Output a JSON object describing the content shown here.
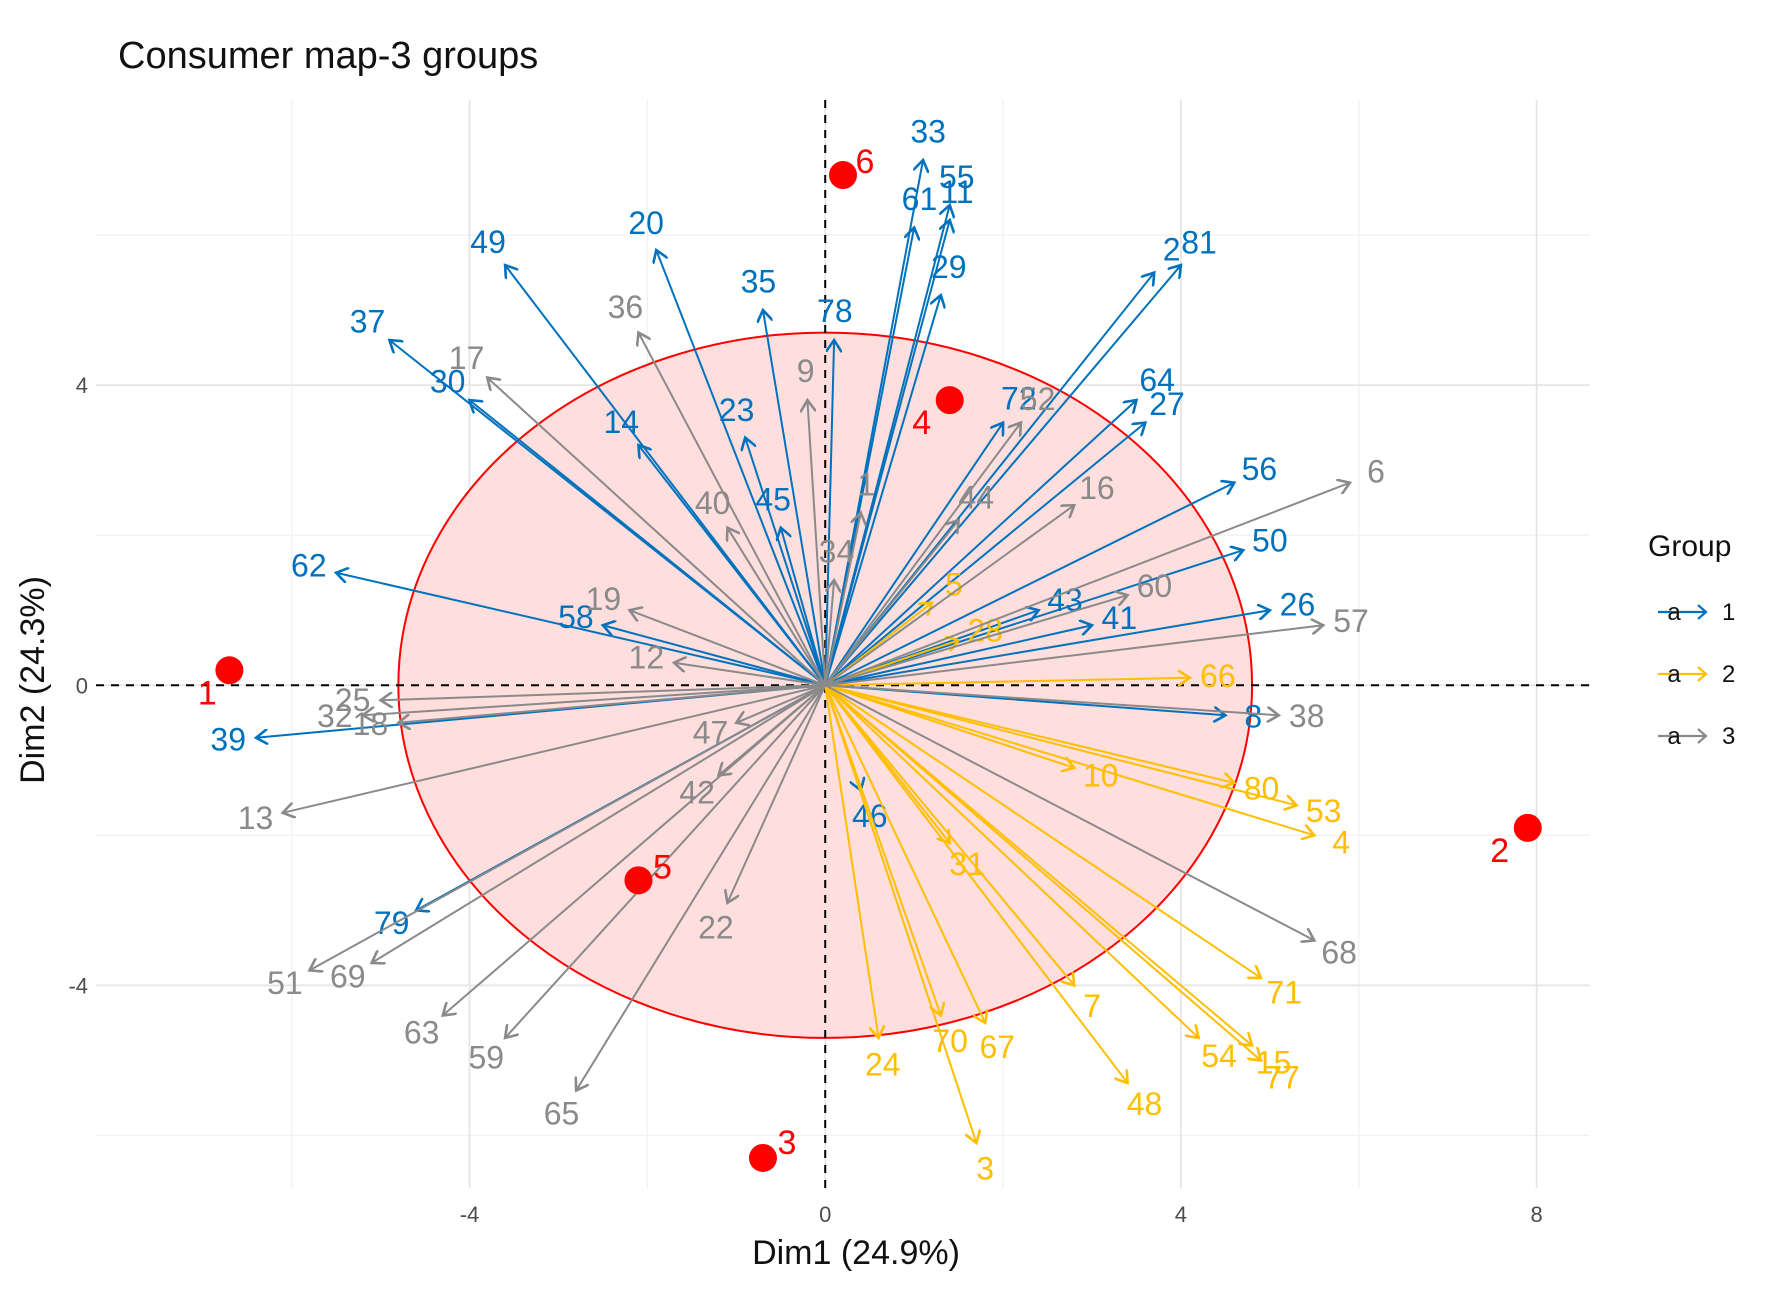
{
  "chart_data": {
    "type": "scatter",
    "title": "Consumer map-3 groups",
    "xlabel": "Dim1 (24.9%)",
    "ylabel": "Dim2 (24.3%)",
    "xlim": [
      -8.2,
      8.6
    ],
    "ylim": [
      -6.7,
      7.8
    ],
    "xticks": [
      -4,
      0,
      4,
      8
    ],
    "yticks": [
      -4,
      0,
      4
    ],
    "x_tick_labels": [
      "-4",
      "0",
      "4",
      "8"
    ],
    "y_tick_labels": [
      "-4",
      "0",
      "4"
    ],
    "legend": {
      "title": "Group",
      "placement": "right",
      "entries": [
        {
          "label": "1",
          "key_glyph": "a",
          "color": "#0072BD"
        },
        {
          "label": "2",
          "key_glyph": "a",
          "color": "#FFBF00"
        },
        {
          "label": "3",
          "key_glyph": "a",
          "color": "#8A8A8A"
        }
      ]
    },
    "group_colors": {
      "1": "#0072BD",
      "2": "#FFBF00",
      "3": "#8A8A8A"
    },
    "ellipse": {
      "center": [
        0,
        0
      ],
      "rx": 4.8,
      "ry": 4.7,
      "fill": "#ffdede",
      "stroke": "#ff0000"
    },
    "points_color": "#ff0000",
    "points": [
      {
        "label": "1",
        "x": -6.7,
        "y": 0.2
      },
      {
        "label": "2",
        "x": 7.9,
        "y": -1.9
      },
      {
        "label": "3",
        "x": -0.7,
        "y": -6.3
      },
      {
        "label": "4",
        "x": 1.4,
        "y": 3.8
      },
      {
        "label": "5",
        "x": -2.1,
        "y": -2.6
      },
      {
        "label": "6",
        "x": 0.2,
        "y": 6.8
      }
    ],
    "arrows": [
      {
        "label": "33",
        "group": "1",
        "x": 1.1,
        "y": 7.0
      },
      {
        "label": "55",
        "group": "1",
        "x": 1.4,
        "y": 6.4
      },
      {
        "label": "11",
        "group": "1",
        "x": 1.4,
        "y": 6.2
      },
      {
        "label": "61",
        "group": "1",
        "x": 1.0,
        "y": 6.1
      },
      {
        "label": "81",
        "group": "1",
        "x": 4.0,
        "y": 5.6
      },
      {
        "label": "2",
        "group": "1",
        "x": 3.7,
        "y": 5.5
      },
      {
        "label": "78",
        "group": "1",
        "x": 0.1,
        "y": 4.6
      },
      {
        "label": "29",
        "group": "1",
        "x": 1.3,
        "y": 5.2
      },
      {
        "label": "20",
        "group": "1",
        "x": -1.9,
        "y": 5.8
      },
      {
        "label": "49",
        "group": "1",
        "x": -3.6,
        "y": 5.6
      },
      {
        "label": "37",
        "group": "1",
        "x": -4.9,
        "y": 4.6
      },
      {
        "label": "30",
        "group": "1",
        "x": -4.0,
        "y": 3.8
      },
      {
        "label": "35",
        "group": "1",
        "x": -0.7,
        "y": 5.0
      },
      {
        "label": "14",
        "group": "1",
        "x": -2.1,
        "y": 3.2
      },
      {
        "label": "23",
        "group": "1",
        "x": -0.9,
        "y": 3.3
      },
      {
        "label": "45",
        "group": "1",
        "x": -0.5,
        "y": 2.1
      },
      {
        "label": "64",
        "group": "1",
        "x": 3.5,
        "y": 3.8
      },
      {
        "label": "27",
        "group": "1",
        "x": 3.6,
        "y": 3.5
      },
      {
        "label": "72",
        "group": "1",
        "x": 2.0,
        "y": 3.5
      },
      {
        "label": "56",
        "group": "1",
        "x": 4.6,
        "y": 2.7
      },
      {
        "label": "50",
        "group": "1",
        "x": 4.7,
        "y": 1.8
      },
      {
        "label": "43",
        "group": "1",
        "x": 2.4,
        "y": 1.0
      },
      {
        "label": "41",
        "group": "1",
        "x": 3.0,
        "y": 0.8
      },
      {
        "label": "26",
        "group": "1",
        "x": 5.0,
        "y": 1.0
      },
      {
        "label": "8",
        "group": "1",
        "x": 4.5,
        "y": -0.4
      },
      {
        "label": "62",
        "group": "1",
        "x": -5.5,
        "y": 1.5
      },
      {
        "label": "58",
        "group": "1",
        "x": -2.5,
        "y": 0.8
      },
      {
        "label": "39",
        "group": "1",
        "x": -6.4,
        "y": -0.7
      },
      {
        "label": "79",
        "group": "1",
        "x": -4.6,
        "y": -3.0
      },
      {
        "label": "46",
        "group": "1",
        "x": 0.4,
        "y": -1.4
      },
      {
        "label": "5",
        "group": "2",
        "x": 1.2,
        "y": 1.1
      },
      {
        "label": "28",
        "group": "2",
        "x": 1.5,
        "y": 0.6
      },
      {
        "label": "66",
        "group": "2",
        "x": 4.1,
        "y": 0.1
      },
      {
        "label": "10",
        "group": "2",
        "x": 2.8,
        "y": -1.1
      },
      {
        "label": "80",
        "group": "2",
        "x": 4.6,
        "y": -1.3
      },
      {
        "label": "53",
        "group": "2",
        "x": 5.3,
        "y": -1.6
      },
      {
        "label": "4",
        "group": "2",
        "x": 5.5,
        "y": -2.0
      },
      {
        "label": "31",
        "group": "2",
        "x": 1.4,
        "y": -2.1
      },
      {
        "label": "71",
        "group": "2",
        "x": 4.9,
        "y": -3.9
      },
      {
        "label": "7",
        "group": "2",
        "x": 2.8,
        "y": -4.0
      },
      {
        "label": "67",
        "group": "2",
        "x": 1.8,
        "y": -4.5
      },
      {
        "label": "15",
        "group": "2",
        "x": 4.8,
        "y": -4.8
      },
      {
        "label": "77",
        "group": "2",
        "x": 4.9,
        "y": -5.0
      },
      {
        "label": "54",
        "group": "2",
        "x": 4.2,
        "y": -4.7
      },
      {
        "label": "48",
        "group": "2",
        "x": 3.4,
        "y": -5.3
      },
      {
        "label": "24",
        "group": "2",
        "x": 0.6,
        "y": -4.7
      },
      {
        "label": "70",
        "group": "2",
        "x": 1.3,
        "y": -4.4
      },
      {
        "label": "3",
        "group": "2",
        "x": 1.7,
        "y": -6.1
      },
      {
        "label": "36",
        "group": "3",
        "x": -2.1,
        "y": 4.7
      },
      {
        "label": "17",
        "group": "3",
        "x": -3.8,
        "y": 4.1
      },
      {
        "label": "9",
        "group": "3",
        "x": -0.2,
        "y": 3.8
      },
      {
        "label": "52",
        "group": "3",
        "x": 2.2,
        "y": 3.5
      },
      {
        "label": "6",
        "group": "3",
        "x": 5.9,
        "y": 2.7
      },
      {
        "label": "16",
        "group": "3",
        "x": 2.8,
        "y": 2.4
      },
      {
        "label": "44",
        "group": "3",
        "x": 1.5,
        "y": 2.2
      },
      {
        "label": "1",
        "group": "3",
        "x": 0.4,
        "y": 2.3
      },
      {
        "label": "40",
        "group": "3",
        "x": -1.1,
        "y": 2.1
      },
      {
        "label": "34",
        "group": "3",
        "x": 0.1,
        "y": 1.4
      },
      {
        "label": "19",
        "group": "3",
        "x": -2.2,
        "y": 1.0
      },
      {
        "label": "12",
        "group": "3",
        "x": -1.7,
        "y": 0.3
      },
      {
        "label": "60",
        "group": "3",
        "x": 3.4,
        "y": 1.2
      },
      {
        "label": "57",
        "group": "3",
        "x": 5.6,
        "y": 0.8
      },
      {
        "label": "38",
        "group": "3",
        "x": 5.1,
        "y": -0.4
      },
      {
        "label": "25",
        "group": "3",
        "x": -5.0,
        "y": -0.2
      },
      {
        "label": "32",
        "group": "3",
        "x": -5.2,
        "y": -0.4
      },
      {
        "label": "18",
        "group": "3",
        "x": -4.8,
        "y": -0.5
      },
      {
        "label": "13",
        "group": "3",
        "x": -6.1,
        "y": -1.7
      },
      {
        "label": "47",
        "group": "3",
        "x": -1.0,
        "y": -0.5
      },
      {
        "label": "42",
        "group": "3",
        "x": -1.2,
        "y": -1.2
      },
      {
        "label": "22",
        "group": "3",
        "x": -1.1,
        "y": -2.9
      },
      {
        "label": "68",
        "group": "3",
        "x": 5.5,
        "y": -3.4
      },
      {
        "label": "51",
        "group": "3",
        "x": -5.8,
        "y": -3.8
      },
      {
        "label": "69",
        "group": "3",
        "x": -5.1,
        "y": -3.7
      },
      {
        "label": "63",
        "group": "3",
        "x": -4.3,
        "y": -4.4
      },
      {
        "label": "59",
        "group": "3",
        "x": -3.6,
        "y": -4.7
      },
      {
        "label": "65",
        "group": "3",
        "x": -2.8,
        "y": -5.4
      }
    ]
  }
}
